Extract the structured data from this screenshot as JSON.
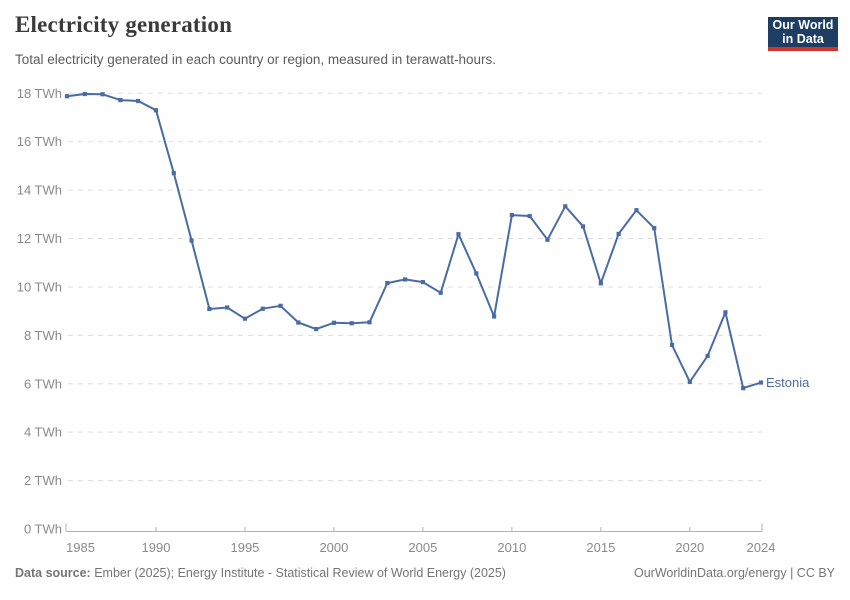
{
  "header": {
    "title": "Electricity generation",
    "subtitle": "Total electricity generated in each country or region, measured in terawatt-hours.",
    "logo": {
      "line1": "Our World",
      "line2": "in Data"
    }
  },
  "chart_data": {
    "type": "line",
    "title": "Electricity generation",
    "unit": "terawatt-hours",
    "x": [
      1985,
      1986,
      1987,
      1988,
      1989,
      1990,
      1991,
      1992,
      1993,
      1994,
      1995,
      1996,
      1997,
      1998,
      1999,
      2000,
      2001,
      2002,
      2003,
      2004,
      2005,
      2006,
      2007,
      2008,
      2009,
      2010,
      2011,
      2012,
      2013,
      2014,
      2015,
      2016,
      2017,
      2018,
      2019,
      2020,
      2021,
      2022,
      2023,
      2024
    ],
    "series": [
      {
        "name": "Estonia",
        "color": "#4a6ba5",
        "values": [
          17.88,
          17.97,
          17.96,
          17.72,
          17.68,
          17.3,
          14.7,
          11.92,
          9.09,
          9.15,
          8.69,
          9.1,
          9.22,
          8.53,
          8.26,
          8.52,
          8.5,
          8.54,
          10.16,
          10.31,
          10.2,
          9.76,
          12.18,
          10.56,
          8.78,
          12.97,
          12.93,
          11.95,
          13.33,
          12.5,
          10.15,
          12.19,
          13.17,
          12.43,
          7.6,
          6.08,
          7.15,
          8.95,
          5.82,
          6.05
        ]
      }
    ],
    "ylim": [
      0,
      18
    ],
    "yticks": [
      0,
      2,
      4,
      6,
      8,
      10,
      12,
      14,
      16,
      18
    ],
    "ytick_suffix": " TWh",
    "xticks": [
      1985,
      1990,
      1995,
      2000,
      2005,
      2010,
      2015,
      2020,
      2024
    ],
    "grid": "horizontal-dashed",
    "legend_position": "end-of-line"
  },
  "footer": {
    "source_label": "Data source:",
    "source_text": " Ember (2025); Energy Institute - Statistical Review of World Energy (2025)",
    "right_text": "OurWorldinData.org/energy | CC BY"
  },
  "colors": {
    "line": "#4a6ba5",
    "gridline": "#dddddd",
    "axis": "#b3b3b3",
    "tick_text": "#8a8a8a",
    "logo_bg": "#1d3d63",
    "logo_bar": "#cf3529"
  }
}
